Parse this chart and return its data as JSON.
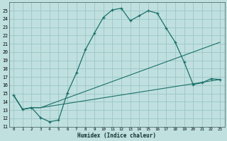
{
  "xlabel": "Humidex (Indice chaleur)",
  "bg_color": "#c0e0e0",
  "grid_color": "#a0c8c8",
  "line_color": "#1a7068",
  "xlim": [
    -0.5,
    23.5
  ],
  "ylim": [
    11,
    26
  ],
  "xticks": [
    0,
    1,
    2,
    3,
    4,
    5,
    6,
    7,
    8,
    9,
    10,
    11,
    12,
    13,
    14,
    15,
    16,
    17,
    18,
    19,
    20,
    21,
    22,
    23
  ],
  "yticks": [
    11,
    12,
    13,
    14,
    15,
    16,
    17,
    18,
    19,
    20,
    21,
    22,
    23,
    24,
    25
  ],
  "line1_x": [
    0,
    1,
    2,
    3,
    4,
    5,
    6,
    7,
    8,
    9,
    10,
    11,
    12,
    13,
    14,
    15,
    16,
    17,
    18,
    19,
    20,
    21,
    22,
    23
  ],
  "line1_y": [
    14.8,
    13.1,
    13.3,
    12.1,
    11.6,
    11.8,
    15.1,
    17.5,
    20.3,
    22.3,
    24.2,
    25.1,
    25.3,
    23.8,
    24.4,
    25.0,
    24.7,
    22.9,
    21.2,
    18.8,
    16.1,
    16.3,
    16.8,
    16.7
  ],
  "line2_x": [
    0,
    1,
    2,
    3,
    23
  ],
  "line2_y": [
    14.8,
    13.1,
    13.3,
    13.3,
    21.2
  ],
  "line3_x": [
    0,
    1,
    2,
    3,
    23
  ],
  "line3_y": [
    14.8,
    13.1,
    13.3,
    13.3,
    16.7
  ]
}
